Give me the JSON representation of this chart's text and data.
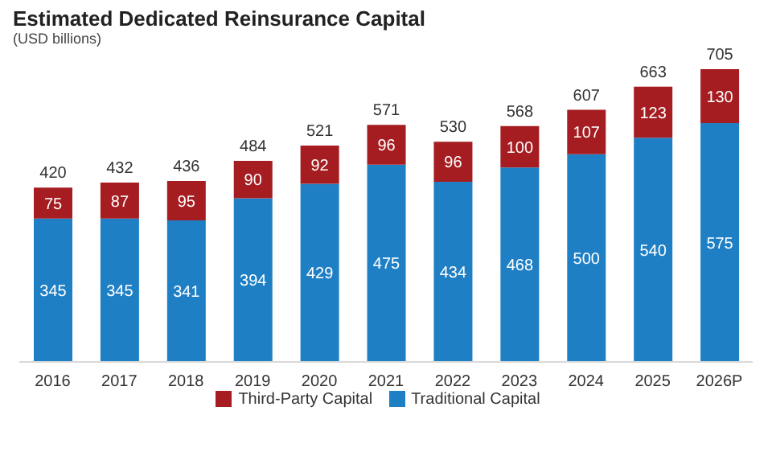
{
  "chart_data": {
    "type": "bar",
    "title": "Estimated Dedicated Reinsurance Capital",
    "subtitle": "(USD billions)",
    "categories": [
      "2016",
      "2017",
      "2018",
      "2019",
      "2020",
      "2021",
      "2022",
      "2023",
      "2024",
      "2025",
      "2026P"
    ],
    "stacked": true,
    "series": [
      {
        "name": "Traditional Capital",
        "color": "#1f7fc4",
        "values": [
          345,
          345,
          341,
          394,
          429,
          475,
          434,
          468,
          500,
          540,
          575
        ]
      },
      {
        "name": "Third-Party Capital",
        "color": "#a51d21",
        "values": [
          75,
          87,
          95,
          90,
          92,
          96,
          96,
          100,
          107,
          123,
          130
        ]
      }
    ],
    "totals": [
      "420",
      "432",
      "436",
      "484",
      "521",
      "571",
      "530",
      "568",
      "607",
      "663",
      "705"
    ],
    "data_labels": true,
    "legend": "bottom"
  }
}
